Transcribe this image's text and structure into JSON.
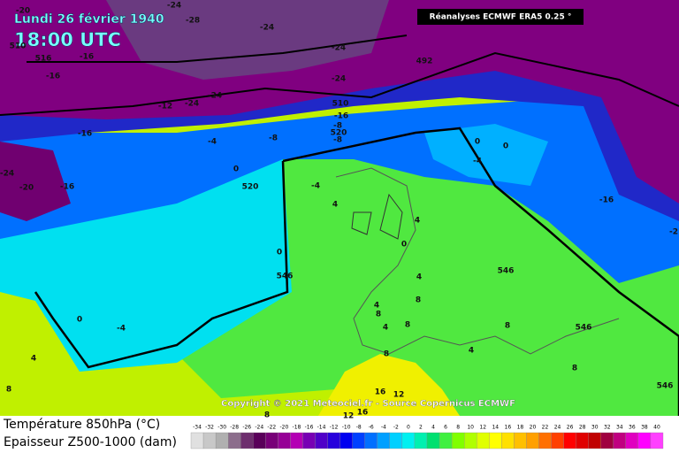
{
  "header": {
    "date": "Lundi 26 février 1940",
    "time": "18:00 UTC",
    "source": "Réanalyses ECMWF ERA5 0.25 °"
  },
  "map": {
    "copyright": "Copyright © 2021 Meteociel.fr - Source Copernicus ECMWF",
    "labels": [
      "-20",
      "-24",
      "-28",
      "-24",
      "510",
      "516",
      "-16",
      "-16",
      "-24",
      "492",
      "-24",
      "-12",
      "-24",
      "-24",
      "510",
      "-16",
      "-8",
      "520",
      "-8",
      "-16",
      "-8",
      "0",
      "0",
      "-4",
      "-24",
      "-20",
      "-16",
      "0",
      "520",
      "-4",
      "4",
      "-16",
      "4",
      "0",
      "0",
      "546",
      "4",
      "546",
      "0",
      "-4",
      "4",
      "8",
      "8",
      "4",
      "8",
      "4",
      "8",
      "4",
      "8",
      "546",
      "8",
      "8",
      "16",
      "12",
      "16",
      "12",
      "8",
      "546",
      "-2",
      "-4"
    ]
  },
  "footer": {
    "temperature_title": "Température 850hPa (°C)",
    "thickness_title": "Epaisseur Z500-1000 (dam)",
    "scale": {
      "ticks": [
        -34,
        -32,
        -30,
        -28,
        -26,
        -24,
        -22,
        -20,
        -18,
        -16,
        -14,
        -12,
        -10,
        -8,
        -6,
        -4,
        -2,
        0,
        2,
        4,
        6,
        8,
        10,
        12,
        14,
        16,
        18,
        20,
        22,
        24,
        26,
        28,
        30,
        32,
        34,
        36,
        38,
        40
      ],
      "colors": [
        "#e0e0e0",
        "#c8c8c8",
        "#b0b0b0",
        "#8c6e8c",
        "#6e2e6e",
        "#5a005a",
        "#780078",
        "#960096",
        "#b400b4",
        "#7800b4",
        "#5000c8",
        "#2800dc",
        "#0000f0",
        "#0040ff",
        "#0070ff",
        "#00a0ff",
        "#00d0ff",
        "#00f0f0",
        "#00f0b0",
        "#00e070",
        "#40f040",
        "#80ff00",
        "#b0ff00",
        "#e0ff00",
        "#ffff00",
        "#ffe000",
        "#ffc000",
        "#ffa000",
        "#ff7000",
        "#ff4000",
        "#ff0000",
        "#e00000",
        "#c00000",
        "#a00040",
        "#c00080",
        "#e000c0",
        "#ff00ff",
        "#ff40ff"
      ]
    }
  }
}
